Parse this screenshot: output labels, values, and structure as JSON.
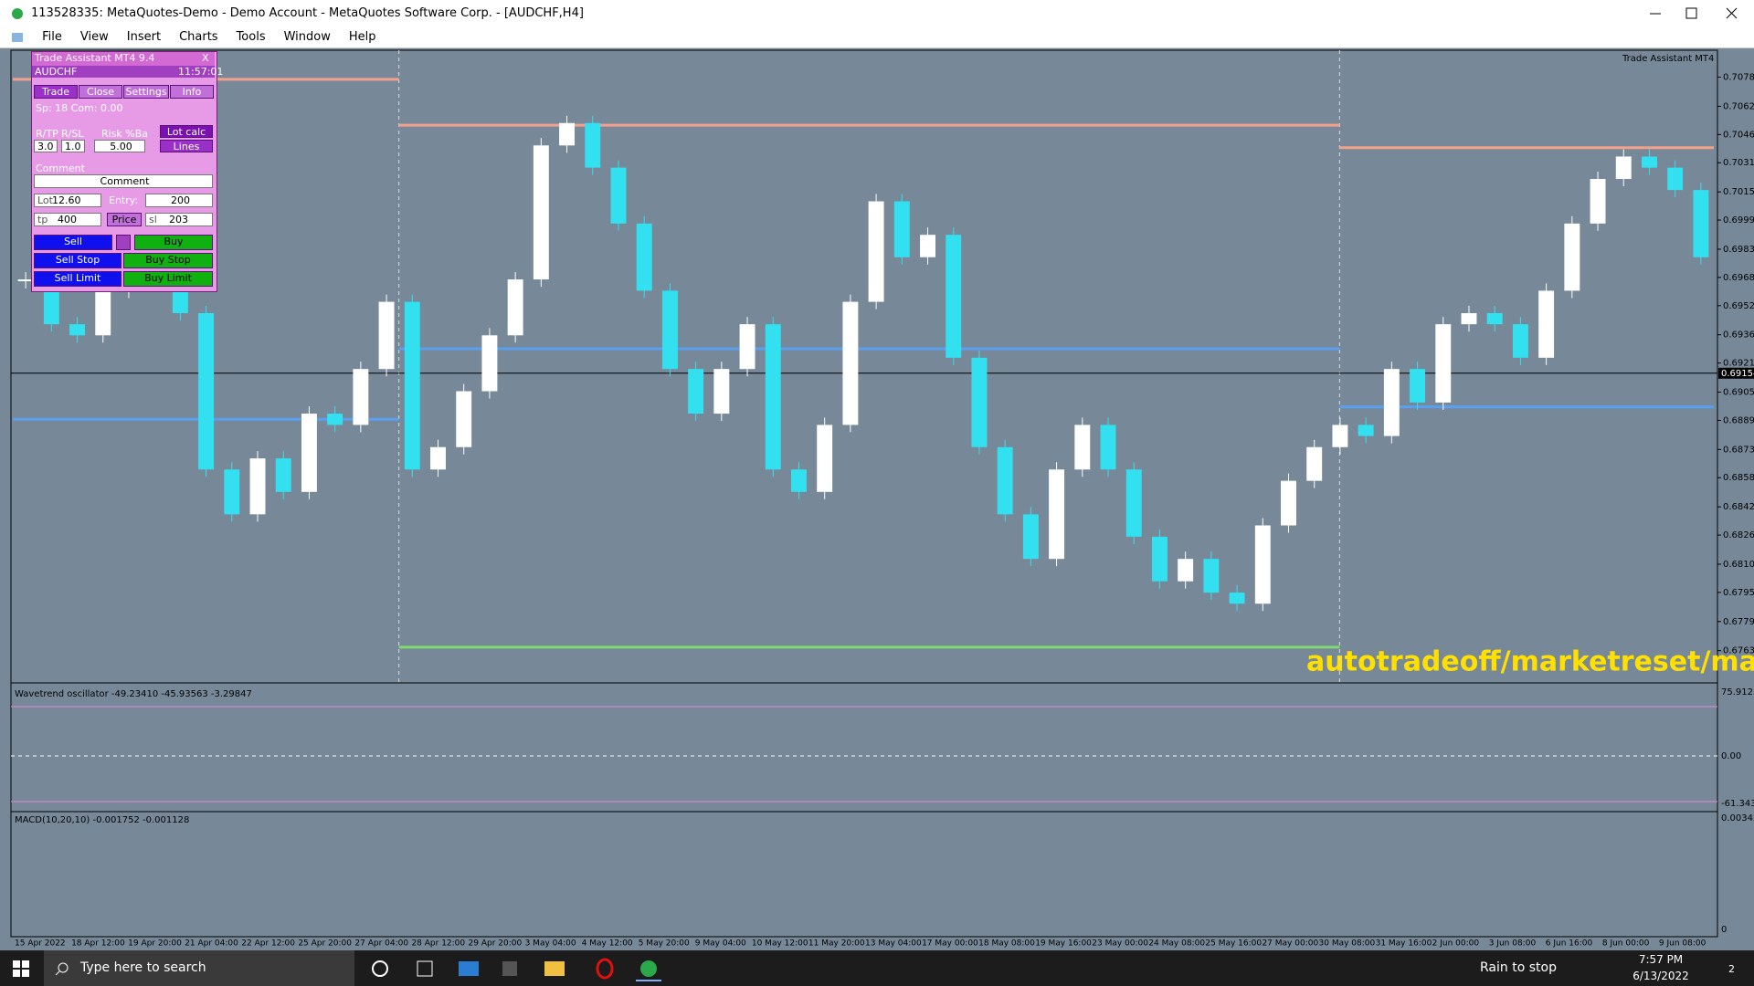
{
  "window": {
    "title": "113528335: MetaQuotes-Demo - Demo Account - MetaQuotes Software Corp. - [AUDCHF,H4]",
    "menu": [
      "File",
      "View",
      "Insert",
      "Charts",
      "Tools",
      "Window",
      "Help"
    ]
  },
  "chart": {
    "type": "candlestick",
    "corner_label": "Trade Assistant MT4",
    "watermark": "autotradeoff/marketreset/manat",
    "bull_color": "#ffffff",
    "bear_color": "#33e0f0",
    "closes": [
      0.69669,
      0.69423,
      0.69362,
      0.69607,
      0.69976,
      0.70283,
      0.69484,
      0.68625,
      0.68379,
      0.68686,
      0.68502,
      0.68932,
      0.6887,
      0.69177,
      0.69546,
      0.68625,
      0.68748,
      0.69055,
      0.69362,
      0.69669,
      0.70405,
      0.70528,
      0.70283,
      0.69976,
      0.69607,
      0.69177,
      0.68932,
      0.69177,
      0.69423,
      0.68625,
      0.68502,
      0.6887,
      0.69546,
      0.70098,
      0.69791,
      0.69914,
      0.69239,
      0.68748,
      0.68379,
      0.68134,
      0.68625,
      0.6887,
      0.68625,
      0.68256,
      0.68011,
      0.68134,
      0.67949,
      0.67888,
      0.68318,
      0.68563,
      0.68748,
      0.6887,
      0.68809,
      0.69177,
      0.68993,
      0.69423,
      0.69484,
      0.69423,
      0.69239,
      0.69607,
      0.69976,
      0.70221,
      0.70344,
      0.70283,
      0.7016,
      0.69791
    ],
    "ylim": [
      0.67458,
      0.70928
    ],
    "yticks": [
      {
        "value": 0.7078,
        "label": "0.70780"
      },
      {
        "value": 0.7062,
        "label": "0.70620"
      },
      {
        "value": 0.70465,
        "label": "0.70465"
      },
      {
        "value": 0.7031,
        "label": "0.70310"
      },
      {
        "value": 0.7015,
        "label": "0.70150"
      },
      {
        "value": 0.69995,
        "label": "0.69995"
      },
      {
        "value": 0.69835,
        "label": "0.69835"
      },
      {
        "value": 0.6968,
        "label": "0.69680"
      },
      {
        "value": 0.69525,
        "label": "0.69525"
      },
      {
        "value": 0.69365,
        "label": "0.69365"
      },
      {
        "value": 0.6921,
        "label": "0.69210"
      },
      {
        "value": 0.6905,
        "label": "0.69050"
      },
      {
        "value": 0.68895,
        "label": "0.68895"
      },
      {
        "value": 0.68735,
        "label": "0.68735"
      },
      {
        "value": 0.6858,
        "label": "0.68580"
      },
      {
        "value": 0.6842,
        "label": "0.68420"
      },
      {
        "value": 0.68265,
        "label": "0.68265"
      },
      {
        "value": 0.68105,
        "label": "0.68105"
      },
      {
        "value": 0.6795,
        "label": "0.67950"
      },
      {
        "value": 0.6779,
        "label": "0.67790"
      },
      {
        "value": 0.6763,
        "label": "0.67630"
      }
    ],
    "current_price": {
      "value": 0.69154,
      "label": "0.69154"
    },
    "level_colors": {
      "resistance": "#f4a08a",
      "pivot": "#5aa0f0",
      "support": "#7fd870"
    },
    "periods": [
      {
        "resistance": 0.70768,
        "pivot": 0.68901
      },
      {
        "resistance": 0.70516,
        "pivot": 0.69288,
        "support": 0.67649
      },
      {
        "resistance": 0.70393,
        "pivot": 0.68969
      }
    ],
    "dates": [
      "15 Apr 2022",
      "18 Apr 12:00",
      "19 Apr 20:00",
      "21 Apr 04:00",
      "22 Apr 12:00",
      "25 Apr 20:00",
      "27 Apr 04:00",
      "28 Apr 12:00",
      "29 Apr 20:00",
      "3 May 04:00",
      "4 May 12:00",
      "5 May 20:00",
      "9 May 04:00",
      "10 May 12:00",
      "11 May 20:00",
      "13 May 04:00",
      "17 May 00:00",
      "18 May 08:00",
      "19 May 16:00",
      "23 May 00:00",
      "24 May 08:00",
      "25 May 16:00",
      "27 May 00:00",
      "30 May 08:00",
      "31 May 16:00",
      "2 Jun 00:00",
      "3 Jun 08:00",
      "6 Jun 16:00",
      "8 Jun 00:00",
      "9 Jun 08:00"
    ]
  },
  "oscillator": {
    "label": "Wavetrend oscillator -49.23410 -45.93563 -3.29847",
    "top": "75.91232",
    "zero": "0.00",
    "bottom": "-61.3439"
  },
  "macd": {
    "label": "MACD(10,20,10) -0.001752 -0.001128",
    "top": "0.003428",
    "zero": "0"
  },
  "trade_panel": {
    "title": "Trade Assistant MT4 9.4",
    "close": "X",
    "symbol": "AUDCHF",
    "time": "11:57:01",
    "tabs": [
      "Trade",
      "Close",
      "Settings",
      "Info"
    ],
    "spread": "Sp: 18  Com: 0.00",
    "rtp": "R/TP",
    "rsl": "R/SL",
    "risk": "Risk %Ba",
    "lot_calc": "Lot calc",
    "rtp_value": "3.0",
    "rsl_value": "1.0",
    "risk_value": "5.00",
    "lines": "Lines",
    "comment_label": "Comment",
    "comment_button": "Comment",
    "lot": "Lot",
    "lot_value": "12.60",
    "entry": "Entry:",
    "entry_value": "200",
    "tp": "tp",
    "tp_value": "400",
    "price": "Price",
    "sl": "sl",
    "sl_value": "203",
    "sell": "Sell",
    "buy": "Buy",
    "sell_stop": "Sell Stop",
    "buy_stop": "Buy Stop",
    "sell_limit": "Sell Limit",
    "buy_limit": "Buy Limit"
  },
  "taskbar": {
    "search": "Type here to search",
    "weather": "Rain to stop",
    "time": "7:57 PM",
    "date": "6/13/2022",
    "notifications": "2"
  }
}
